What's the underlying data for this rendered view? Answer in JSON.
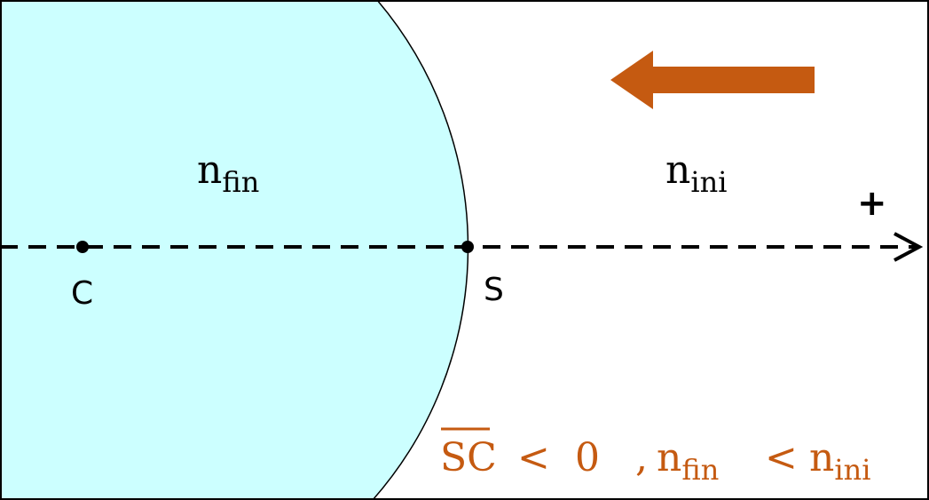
{
  "colors": {
    "medium": "#CCFFFF",
    "accent": "#C55A11",
    "line": "#000000"
  },
  "labels": {
    "n": "n",
    "fin": "fin",
    "ini": "ini",
    "plus": "+",
    "point_c": "C",
    "point_s": "S"
  },
  "condition": {
    "segment": "SC",
    "lt": "<",
    "zero": "0",
    "comma": ",",
    "n1": "n",
    "sub1": "fin",
    "lt2": "<",
    "n2": "n",
    "sub2": "ini"
  }
}
